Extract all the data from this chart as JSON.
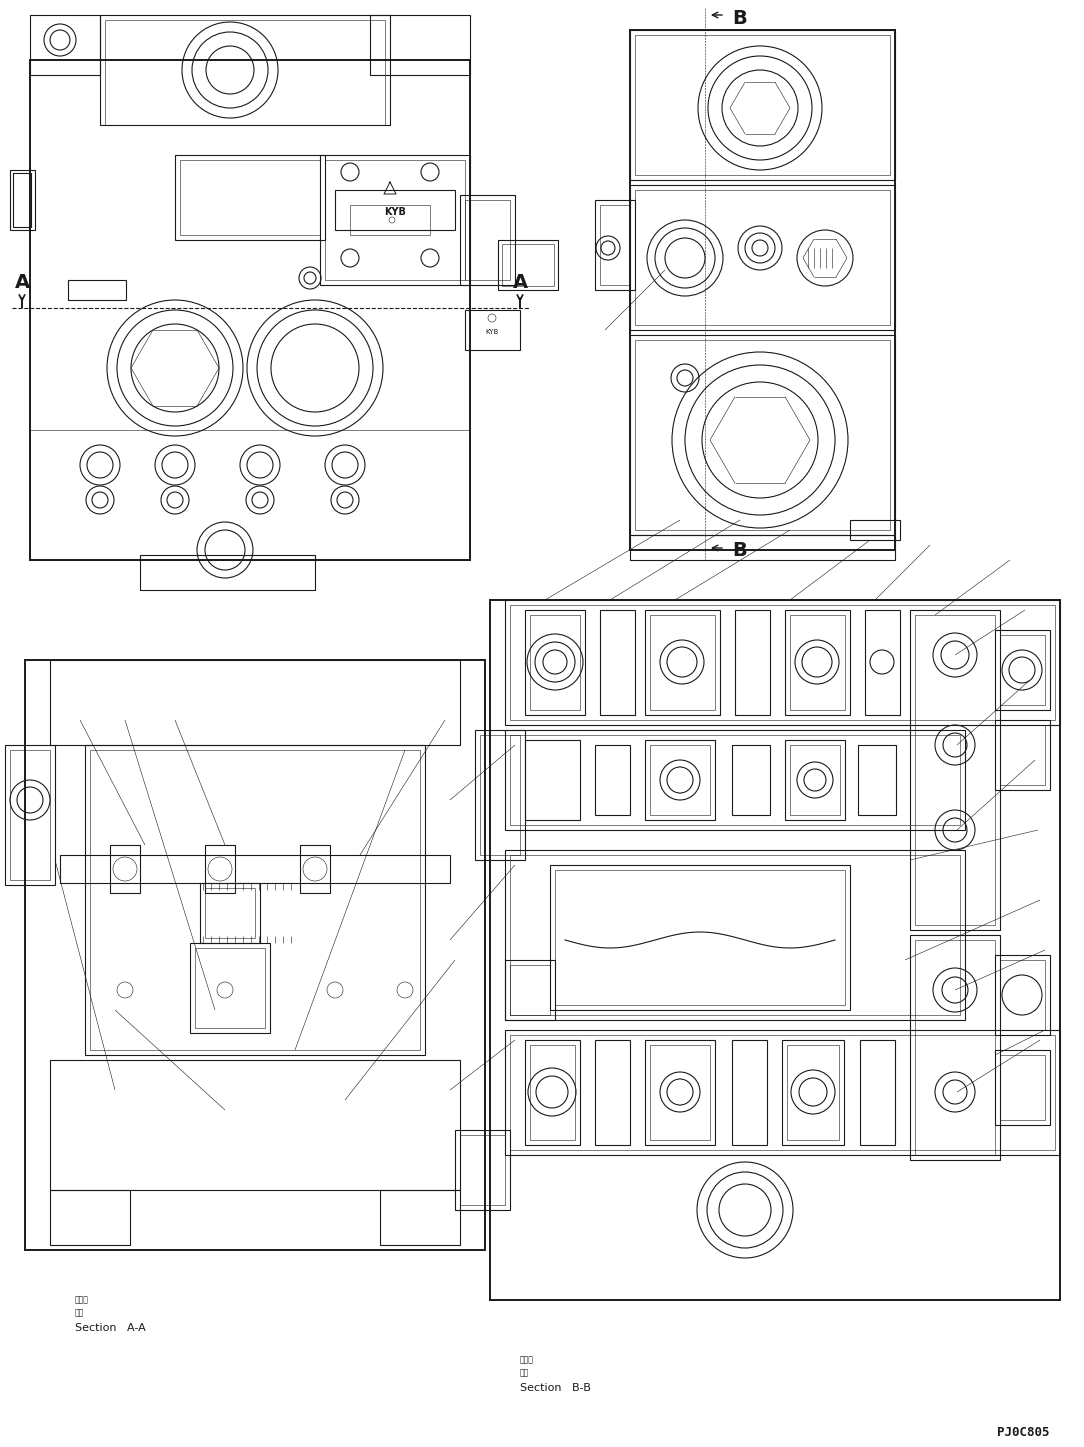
{
  "bg_color": "#ffffff",
  "line_color": "#1a1a1a",
  "lw": 0.8,
  "lw_thick": 1.4,
  "lw_thin": 0.4,
  "figsize": [
    10.84,
    14.47
  ],
  "dpi": 100,
  "section_AA": "Section   A-A",
  "section_BB": "Section   B-B",
  "part_number": "PJ0C805"
}
